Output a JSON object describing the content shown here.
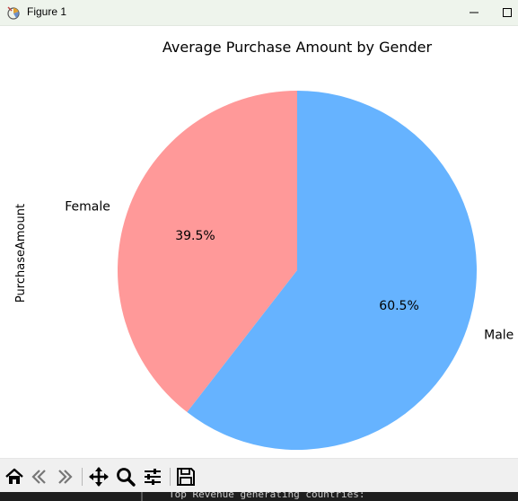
{
  "window": {
    "title": "Figure 1",
    "app_icon": "matplotlib-figure-icon"
  },
  "chart_data": {
    "type": "pie",
    "title": "Average Purchase Amount by Gender",
    "ylabel": "PurchaseAmount",
    "labels": [
      "Female",
      "Male"
    ],
    "values": [
      39.5,
      60.5
    ],
    "autopct": [
      "39.5%",
      "60.5%"
    ],
    "colors": [
      "#ff9999",
      "#66b3ff"
    ],
    "start_angle_deg": 90,
    "direction": "counterclockwise"
  },
  "toolbar": {
    "buttons": [
      {
        "name": "home-button",
        "icon": "home-icon"
      },
      {
        "name": "back-button",
        "icon": "back-arrow-icon"
      },
      {
        "name": "forward-button",
        "icon": "forward-arrow-icon"
      },
      {
        "name": "pan-button",
        "icon": "pan-move-icon"
      },
      {
        "name": "zoom-button",
        "icon": "zoom-magnifier-icon"
      },
      {
        "name": "configure-subplots-button",
        "icon": "sliders-icon"
      },
      {
        "name": "save-button",
        "icon": "save-floppy-icon"
      }
    ]
  },
  "console": {
    "text": "Top Revenue generating countries:"
  }
}
